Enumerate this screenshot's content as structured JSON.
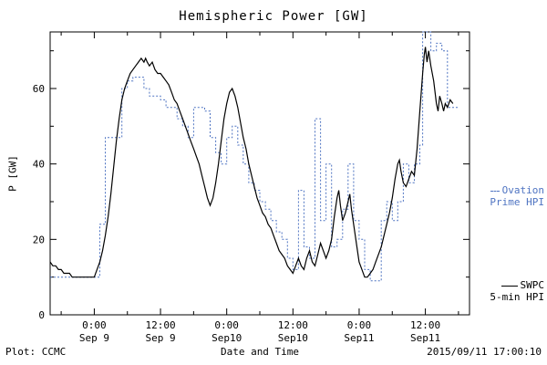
{
  "chart_data": {
    "type": "line",
    "title": "Hemispheric Power [GW]",
    "xlabel": "Date and Time",
    "ylabel": "P [GW]",
    "x_unit": "hours from Sep 9 00:00",
    "xlim": [
      -8,
      68
    ],
    "ylim": [
      0,
      75
    ],
    "grid": false,
    "y_major": [
      0,
      20,
      40,
      60
    ],
    "y_tick_labels": [
      "0",
      "20",
      "40",
      "60"
    ],
    "y_minor": [
      10,
      30,
      50,
      70
    ],
    "x_ticks": [
      {
        "hour": 0,
        "time": "0:00",
        "date": "Sep 9"
      },
      {
        "hour": 12,
        "time": "12:00",
        "date": "Sep 9"
      },
      {
        "hour": 24,
        "time": "0:00",
        "date": "Sep10"
      },
      {
        "hour": 36,
        "time": "12:00",
        "date": "Sep10"
      },
      {
        "hour": 48,
        "time": "0:00",
        "date": "Sep11"
      },
      {
        "hour": 60,
        "time": "12:00",
        "date": "Sep11"
      }
    ],
    "x_minor": [
      -6,
      6,
      18,
      30,
      42,
      54,
      66
    ],
    "series": [
      {
        "name": "Ovation Prime HPI",
        "color": "#4f74c2",
        "style": "dotted-step",
        "points": [
          [
            -8,
            10
          ],
          [
            1,
            24
          ],
          [
            2,
            47
          ],
          [
            5,
            60
          ],
          [
            6,
            62
          ],
          [
            7,
            63
          ],
          [
            9,
            60
          ],
          [
            10,
            58
          ],
          [
            12,
            57
          ],
          [
            13,
            55
          ],
          [
            15,
            52
          ],
          [
            16,
            50
          ],
          [
            17,
            47
          ],
          [
            18,
            55
          ],
          [
            20,
            54
          ],
          [
            21,
            47
          ],
          [
            22,
            43
          ],
          [
            23,
            40
          ],
          [
            24,
            47
          ],
          [
            25,
            50
          ],
          [
            26,
            45
          ],
          [
            27,
            40
          ],
          [
            28,
            35
          ],
          [
            29,
            33
          ],
          [
            30,
            30
          ],
          [
            31,
            28
          ],
          [
            32,
            25
          ],
          [
            33,
            22
          ],
          [
            34,
            20
          ],
          [
            35,
            15
          ],
          [
            36,
            12
          ],
          [
            37,
            33
          ],
          [
            38,
            18
          ],
          [
            39,
            15
          ],
          [
            40,
            52
          ],
          [
            41,
            25
          ],
          [
            42,
            40
          ],
          [
            43,
            18
          ],
          [
            44,
            20
          ],
          [
            45,
            28
          ],
          [
            46,
            40
          ],
          [
            47,
            25
          ],
          [
            48,
            20
          ],
          [
            49,
            12
          ],
          [
            50,
            9
          ],
          [
            52,
            25
          ],
          [
            53,
            30
          ],
          [
            54,
            25
          ],
          [
            55,
            30
          ],
          [
            56,
            40
          ],
          [
            57,
            35
          ],
          [
            58,
            40
          ],
          [
            59,
            45
          ],
          [
            59.5,
            75
          ],
          [
            61,
            70
          ],
          [
            62,
            72
          ],
          [
            63,
            70
          ],
          [
            64,
            55
          ],
          [
            66,
            55
          ]
        ]
      },
      {
        "name": "SWPC 5-min HPI",
        "color": "#000000",
        "style": "solid",
        "points": [
          [
            -8,
            14
          ],
          [
            -7.5,
            13
          ],
          [
            -7,
            13
          ],
          [
            -6.5,
            12
          ],
          [
            -6,
            12
          ],
          [
            -5.5,
            11
          ],
          [
            -5,
            11
          ],
          [
            -4.5,
            11
          ],
          [
            -4,
            10
          ],
          [
            -3,
            10
          ],
          [
            -2,
            10
          ],
          [
            -1,
            10
          ],
          [
            0,
            10
          ],
          [
            0.5,
            12
          ],
          [
            1,
            14
          ],
          [
            1.5,
            17
          ],
          [
            2,
            21
          ],
          [
            2.5,
            26
          ],
          [
            3,
            32
          ],
          [
            3.5,
            39
          ],
          [
            4,
            46
          ],
          [
            4.5,
            52
          ],
          [
            5,
            57
          ],
          [
            5.5,
            60
          ],
          [
            6,
            62
          ],
          [
            6.5,
            64
          ],
          [
            7,
            65
          ],
          [
            7.5,
            66
          ],
          [
            8,
            67
          ],
          [
            8.5,
            68
          ],
          [
            9,
            67
          ],
          [
            9.3,
            68
          ],
          [
            9.6,
            67
          ],
          [
            10,
            66
          ],
          [
            10.5,
            67
          ],
          [
            11,
            65
          ],
          [
            11.5,
            64
          ],
          [
            12,
            64
          ],
          [
            12.5,
            63
          ],
          [
            13,
            62
          ],
          [
            13.5,
            61
          ],
          [
            14,
            59
          ],
          [
            14.5,
            57
          ],
          [
            15,
            56
          ],
          [
            15.5,
            54
          ],
          [
            16,
            52
          ],
          [
            16.5,
            50
          ],
          [
            17,
            48
          ],
          [
            17.5,
            46
          ],
          [
            18,
            44
          ],
          [
            18.5,
            42
          ],
          [
            19,
            40
          ],
          [
            19.5,
            37
          ],
          [
            20,
            34
          ],
          [
            20.5,
            31
          ],
          [
            21,
            29
          ],
          [
            21.5,
            31
          ],
          [
            22,
            35
          ],
          [
            22.5,
            40
          ],
          [
            23,
            46
          ],
          [
            23.5,
            52
          ],
          [
            24,
            56
          ],
          [
            24.5,
            59
          ],
          [
            25,
            60
          ],
          [
            25.5,
            58
          ],
          [
            26,
            55
          ],
          [
            26.5,
            51
          ],
          [
            27,
            47
          ],
          [
            27.5,
            44
          ],
          [
            28,
            40
          ],
          [
            28.5,
            37
          ],
          [
            29,
            34
          ],
          [
            29.5,
            31
          ],
          [
            30,
            29
          ],
          [
            30.5,
            27
          ],
          [
            31,
            26
          ],
          [
            31.5,
            24
          ],
          [
            32,
            23
          ],
          [
            32.5,
            21
          ],
          [
            33,
            19
          ],
          [
            33.5,
            17
          ],
          [
            34,
            16
          ],
          [
            34.5,
            15
          ],
          [
            35,
            13
          ],
          [
            35.5,
            12
          ],
          [
            36,
            11
          ],
          [
            36.5,
            13
          ],
          [
            37,
            15
          ],
          [
            37.5,
            13
          ],
          [
            38,
            12
          ],
          [
            38.5,
            15
          ],
          [
            39,
            17
          ],
          [
            39.5,
            14
          ],
          [
            40,
            13
          ],
          [
            40.5,
            16
          ],
          [
            41,
            19
          ],
          [
            41.5,
            17
          ],
          [
            42,
            15
          ],
          [
            42.5,
            17
          ],
          [
            43,
            20
          ],
          [
            43.5,
            26
          ],
          [
            44,
            31
          ],
          [
            44.3,
            33
          ],
          [
            44.6,
            29
          ],
          [
            45,
            25
          ],
          [
            45.5,
            27
          ],
          [
            46,
            30
          ],
          [
            46.3,
            32
          ],
          [
            46.6,
            28
          ],
          [
            47,
            24
          ],
          [
            47.5,
            19
          ],
          [
            48,
            14
          ],
          [
            48.5,
            12
          ],
          [
            49,
            10
          ],
          [
            49.5,
            10
          ],
          [
            50,
            11
          ],
          [
            50.5,
            12
          ],
          [
            51,
            14
          ],
          [
            51.5,
            16
          ],
          [
            52,
            18
          ],
          [
            52.5,
            21
          ],
          [
            53,
            24
          ],
          [
            53.5,
            27
          ],
          [
            54,
            31
          ],
          [
            54.5,
            36
          ],
          [
            55,
            40
          ],
          [
            55.3,
            41
          ],
          [
            55.6,
            38
          ],
          [
            56,
            35
          ],
          [
            56.5,
            34
          ],
          [
            57,
            36
          ],
          [
            57.5,
            38
          ],
          [
            58,
            37
          ],
          [
            58.5,
            44
          ],
          [
            59,
            54
          ],
          [
            59.5,
            64
          ],
          [
            59.8,
            69
          ],
          [
            60,
            71
          ],
          [
            60.3,
            67
          ],
          [
            60.6,
            70
          ],
          [
            61,
            66
          ],
          [
            61.5,
            62
          ],
          [
            62,
            56
          ],
          [
            62.3,
            54
          ],
          [
            62.6,
            58
          ],
          [
            63,
            56
          ],
          [
            63.3,
            54
          ],
          [
            63.6,
            56
          ],
          [
            64,
            55
          ],
          [
            64.5,
            57
          ],
          [
            65,
            56
          ]
        ]
      }
    ]
  },
  "legend": {
    "ovation": {
      "line1": "Ovation",
      "line2": "Prime HPI",
      "color": "#4f74c2"
    },
    "swpc": {
      "line1": "SWPC",
      "line2": "5-min HPI",
      "color": "#000000"
    }
  },
  "footer": {
    "left": "Plot: CCMC",
    "right": "2015/09/11 17:00:10"
  }
}
